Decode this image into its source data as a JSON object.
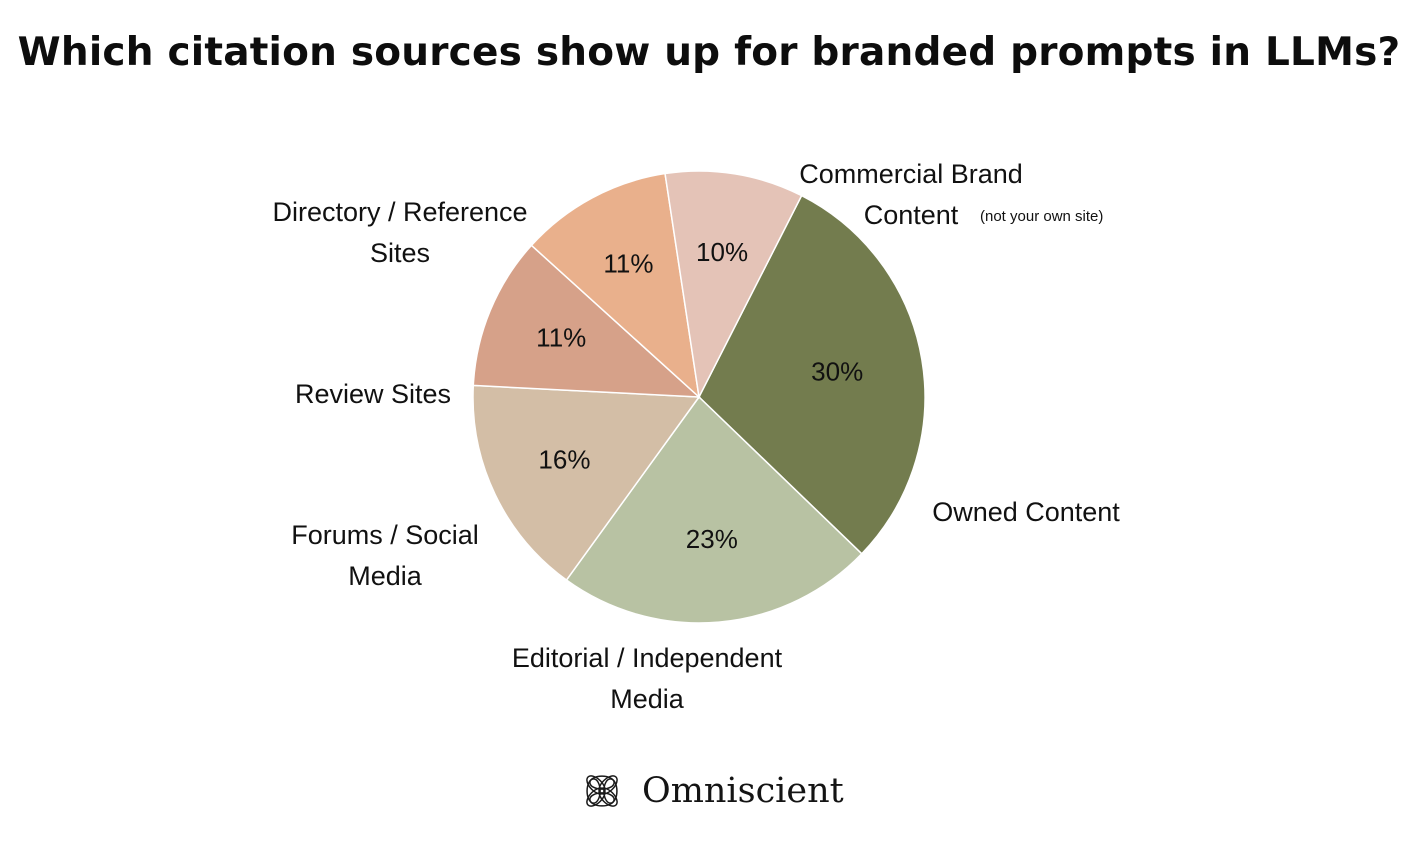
{
  "header": {
    "title": "Which citation sources show up for branded prompts in LLMs?"
  },
  "chart_data": {
    "type": "pie",
    "title": "Which citation sources show up for branded prompts in LLMs?",
    "value_suffix": "%",
    "categories": [
      "Commercial Brand Content",
      "Owned Content",
      "Editorial / Independent Media",
      "Forums / Social Media",
      "Review Sites",
      "Directory / Reference Sites"
    ],
    "values": [
      30,
      23,
      16,
      11,
      11,
      10
    ],
    "percent_labels": [
      "30%",
      "23%",
      "16%",
      "11%",
      "11%",
      "10%"
    ],
    "label_lines": [
      [
        "Commercial Brand",
        "Content"
      ],
      [
        "Owned Content"
      ],
      [
        "Editorial / Independent",
        "Media"
      ],
      [
        "Forums / Social",
        "Media"
      ],
      [
        "Review Sites"
      ],
      [
        "Directory / Reference",
        "Sites"
      ]
    ],
    "annotations": [
      {
        "category": "Commercial Brand Content",
        "text": "(not your own site)"
      }
    ],
    "colors": [
      "#737c4e",
      "#b8c2a3",
      "#d3bea6",
      "#d6a189",
      "#e9b08c",
      "#e4c3b7"
    ],
    "legend": "none",
    "label_placement": "outside with percentages inside slices"
  },
  "footer": {
    "brand_name": "Omniscient",
    "logo_icon": "omniscient-knot-logo-icon"
  }
}
